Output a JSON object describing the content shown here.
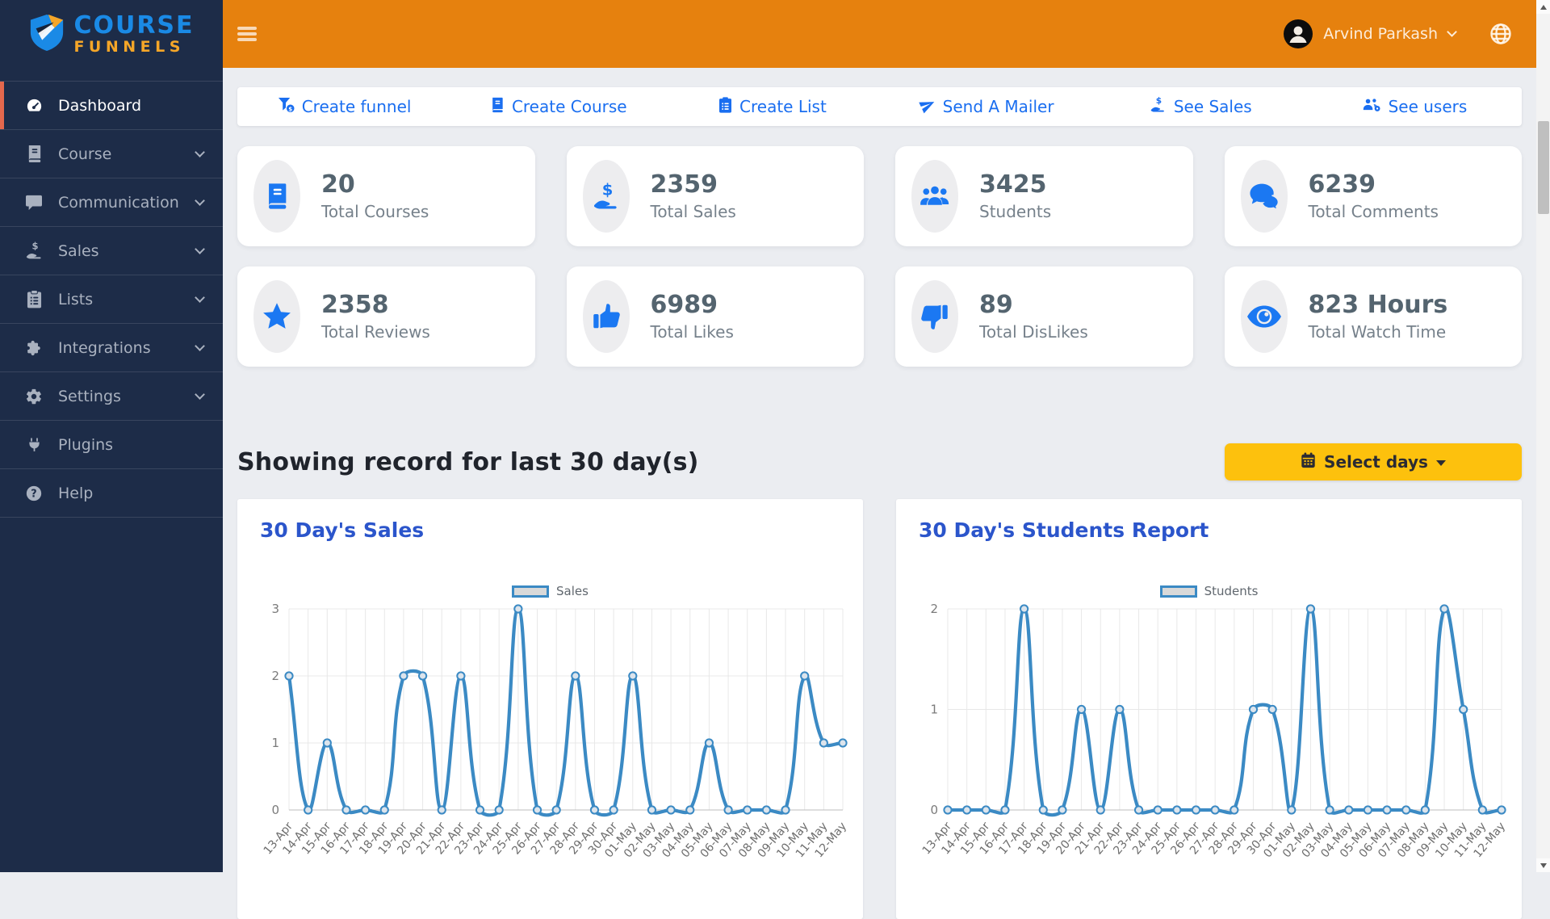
{
  "sidebar": {
    "logo": {
      "line1": "COURSE",
      "line2": "FUNNELS",
      "icon": "shield-logo-icon"
    },
    "items": [
      {
        "label": "Dashboard",
        "icon": "gauge-icon",
        "active": true,
        "expandable": false
      },
      {
        "label": "Course",
        "icon": "book-icon",
        "active": false,
        "expandable": true
      },
      {
        "label": "Communication",
        "icon": "comment-icon",
        "active": false,
        "expandable": true
      },
      {
        "label": "Sales",
        "icon": "hand-dollar-icon",
        "active": false,
        "expandable": true
      },
      {
        "label": "Lists",
        "icon": "clipboard-icon",
        "active": false,
        "expandable": true
      },
      {
        "label": "Integrations",
        "icon": "puzzle-icon",
        "active": false,
        "expandable": true
      },
      {
        "label": "Settings",
        "icon": "gear-icon",
        "active": false,
        "expandable": true
      },
      {
        "label": "Plugins",
        "icon": "plug-icon",
        "active": false,
        "expandable": false
      },
      {
        "label": "Help",
        "icon": "question-icon",
        "active": false,
        "expandable": false
      }
    ]
  },
  "header": {
    "user_name": "Arvind Parkash",
    "icons": [
      "hamburger-icon",
      "avatar-icon",
      "caret-down-icon",
      "globe-icon"
    ]
  },
  "quick_actions": [
    {
      "label": "Create funnel",
      "icon": "funnel-dollar-icon"
    },
    {
      "label": "Create Course",
      "icon": "book-icon"
    },
    {
      "label": "Create List",
      "icon": "clipboard-icon"
    },
    {
      "label": "Send A Mailer",
      "icon": "paper-plane-icon"
    },
    {
      "label": "See Sales",
      "icon": "hand-dollar-icon"
    },
    {
      "label": "See users",
      "icon": "users-gear-icon"
    }
  ],
  "stats": [
    {
      "value": "20",
      "label": "Total Courses",
      "icon": "book-icon"
    },
    {
      "value": "2359",
      "label": "Total Sales",
      "icon": "hand-dollar-icon"
    },
    {
      "value": "3425",
      "label": "Students",
      "icon": "users-icon"
    },
    {
      "value": "6239",
      "label": "Total Comments",
      "icon": "comments-icon"
    },
    {
      "value": "2358",
      "label": "Total Reviews",
      "icon": "star-icon"
    },
    {
      "value": "6989",
      "label": "Total Likes",
      "icon": "thumbs-up-icon"
    },
    {
      "value": "89",
      "label": "Total DisLikes",
      "icon": "thumbs-down-icon"
    },
    {
      "value": "823 Hours",
      "label": "Total Watch Time",
      "icon": "eye-icon"
    }
  ],
  "section": {
    "heading": "Showing record for last 30 day(s)",
    "select_days_label": "Select days",
    "select_days_icon": "calendar-icon"
  },
  "chart_data": [
    {
      "type": "line",
      "title": "30 Day's Sales",
      "x": [
        "13-Apr",
        "14-Apr",
        "15-Apr",
        "16-Apr",
        "17-Apr",
        "18-Apr",
        "19-Apr",
        "20-Apr",
        "21-Apr",
        "22-Apr",
        "23-Apr",
        "24-Apr",
        "25-Apr",
        "26-Apr",
        "27-Apr",
        "28-Apr",
        "29-Apr",
        "30-Apr",
        "01-May",
        "02-May",
        "03-May",
        "04-May",
        "05-May",
        "06-May",
        "07-May",
        "08-May",
        "09-May",
        "10-May",
        "11-May",
        "12-May"
      ],
      "series": [
        {
          "name": "Sales",
          "values": [
            2,
            0,
            1,
            0,
            0,
            0,
            2,
            2,
            0,
            2,
            0,
            0,
            3,
            0,
            0,
            2,
            0,
            0,
            2,
            0,
            0,
            0,
            1,
            0,
            0,
            0,
            0,
            2,
            1,
            1
          ]
        }
      ],
      "ylim": [
        0,
        3
      ],
      "yticks": [
        0,
        1,
        2,
        3
      ],
      "line_color": "#3b8ac4",
      "grid": true,
      "legend_position": "top-center",
      "point_style": "circle"
    },
    {
      "type": "line",
      "title": "30 Day's Students Report",
      "x": [
        "13-Apr",
        "14-Apr",
        "15-Apr",
        "16-Apr",
        "17-Apr",
        "18-Apr",
        "19-Apr",
        "20-Apr",
        "21-Apr",
        "22-Apr",
        "23-Apr",
        "24-Apr",
        "25-Apr",
        "26-Apr",
        "27-Apr",
        "28-Apr",
        "29-Apr",
        "30-Apr",
        "01-May",
        "02-May",
        "03-May",
        "04-May",
        "05-May",
        "06-May",
        "07-May",
        "08-May",
        "09-May",
        "10-May",
        "11-May",
        "12-May"
      ],
      "series": [
        {
          "name": "Students",
          "values": [
            0,
            0,
            0,
            0,
            2,
            0,
            0,
            1,
            0,
            1,
            0,
            0,
            0,
            0,
            0,
            0,
            1,
            1,
            0,
            2,
            0,
            0,
            0,
            0,
            0,
            0,
            2,
            1,
            0,
            0
          ]
        }
      ],
      "ylim": [
        0,
        2
      ],
      "yticks": [
        0,
        1,
        2
      ],
      "line_color": "#3b8ac4",
      "grid": true,
      "legend_position": "top-center",
      "point_style": "circle"
    }
  ],
  "colors": {
    "sidebar_bg": "#1d2c48",
    "active_item_bar": "#e4684d",
    "header_orange": "#e6810e",
    "action_blue": "#1a6ef0",
    "card_icon_blue": "#1b78f2",
    "stat_value": "#54646f",
    "warning_yellow": "#fdc10d",
    "chart_title_blue": "#2b55cb",
    "chart_line_blue": "#3b8ac4",
    "logo_blue": "#1a8ae6",
    "logo_orange": "#f5a628"
  }
}
